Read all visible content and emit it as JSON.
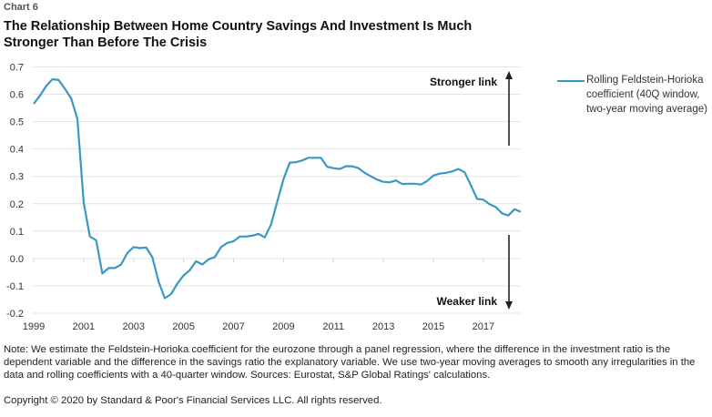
{
  "header": {
    "chart_number": "Chart 6",
    "title": "The Relationship Between Home Country Savings And Investment Is Much Stronger Than Before The Crisis"
  },
  "footer": {
    "note": "Note: We estimate the Feldstein-Horioka coefficient for the eurozone through a panel regression, where the difference in the investment ratio is the dependent variable and the difference in the savings ratio the explanatory variable. We use two-year moving averages to smooth any irregularities in the data and rolling coefficients with a 40-quarter window. Sources: Eurostat, S&P Global Ratings' calculations.",
    "copyright": "Copyright © 2020 by Standard & Poor's Financial Services LLC. All rights reserved."
  },
  "colors": {
    "series": "#3a97c6",
    "grid": "#e3e3e3",
    "arrow": "#222222"
  },
  "chart_data": {
    "type": "line",
    "title": "The Relationship Between Home Country Savings And Investment Is Much Stronger Than Before The Crisis",
    "xlabel": "",
    "ylabel": "",
    "x_start": "1999Q1",
    "x_frequency": "quarterly",
    "xlim": [
      1999,
      2018.5
    ],
    "ylim": [
      -0.2,
      0.7
    ],
    "y_ticks": [
      "0.7",
      "0.6",
      "0.5",
      "0.4",
      "0.3",
      "0.2",
      "0.1",
      "0.0",
      "-0.1",
      "-0.2"
    ],
    "y_tick_values": [
      0.7,
      0.6,
      0.5,
      0.4,
      0.3,
      0.2,
      0.1,
      0.0,
      -0.1,
      -0.2
    ],
    "x_ticks": [
      "1999",
      "2001",
      "2003",
      "2005",
      "2007",
      "2009",
      "2011",
      "2013",
      "2015",
      "2017"
    ],
    "x_tick_values": [
      1999,
      2001,
      2003,
      2005,
      2007,
      2009,
      2011,
      2013,
      2015,
      2017
    ],
    "grid": true,
    "legend_position": "right",
    "annotations": [
      {
        "text": "Stronger link",
        "direction": "up"
      },
      {
        "text": "Weaker link",
        "direction": "down"
      }
    ],
    "series": [
      {
        "name": "Rolling Feldstein-Horioka coefficient (40Q window, two-year moving average)",
        "values": [
          0.565,
          0.595,
          0.63,
          0.655,
          0.652,
          0.62,
          0.585,
          0.51,
          0.205,
          0.08,
          0.067,
          -0.055,
          -0.035,
          -0.035,
          -0.022,
          0.02,
          0.042,
          0.038,
          0.04,
          0.005,
          -0.085,
          -0.145,
          -0.13,
          -0.092,
          -0.062,
          -0.043,
          -0.01,
          -0.022,
          -0.003,
          0.005,
          0.042,
          0.057,
          0.063,
          0.08,
          0.08,
          0.083,
          0.09,
          0.077,
          0.123,
          0.207,
          0.29,
          0.35,
          0.352,
          0.358,
          0.368,
          0.368,
          0.368,
          0.335,
          0.33,
          0.327,
          0.337,
          0.337,
          0.33,
          0.313,
          0.3,
          0.288,
          0.28,
          0.278,
          0.285,
          0.272,
          0.273,
          0.273,
          0.27,
          0.283,
          0.303,
          0.31,
          0.313,
          0.318,
          0.327,
          0.315,
          0.268,
          0.218,
          0.215,
          0.198,
          0.188,
          0.165,
          0.157,
          0.18,
          0.17
        ]
      }
    ]
  }
}
